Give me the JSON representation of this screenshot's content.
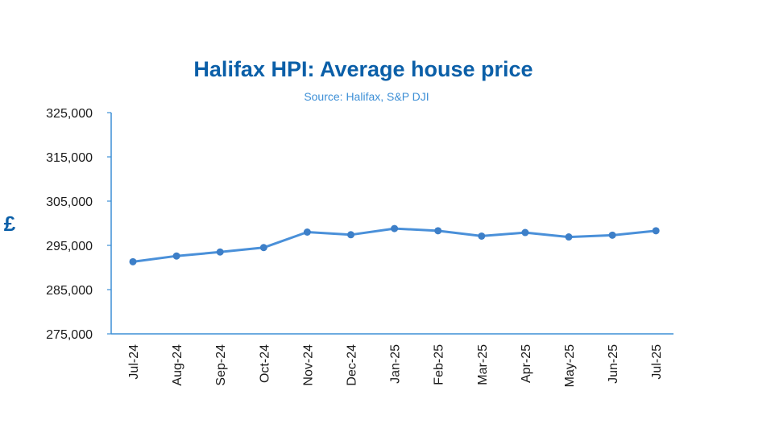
{
  "chart_data": {
    "type": "line",
    "title": "Halifax HPI: Average house price",
    "subtitle": "Source: Halifax, S&P DJI",
    "ylabel": "£",
    "xlabel": "",
    "categories": [
      "Jul-24",
      "Aug-24",
      "Sep-24",
      "Oct-24",
      "Nov-24",
      "Dec-24",
      "Jan-25",
      "Feb-25",
      "Mar-25",
      "Apr-25",
      "May-25",
      "Jun-25",
      "Jul-25"
    ],
    "series": [
      {
        "values": [
          291300,
          292600,
          293500,
          294500,
          298000,
          297400,
          298800,
          298300,
          297100,
          297900,
          296900,
          297300,
          298300
        ]
      }
    ],
    "ylim": [
      275000,
      325000
    ],
    "yticks": [
      275000,
      285000,
      295000,
      305000,
      315000,
      325000
    ],
    "ytick_labels": [
      "275,000",
      "285,000",
      "295,000",
      "305,000",
      "315,000",
      "325,000"
    ],
    "grid": false,
    "legend": "none",
    "line_color": "#4a90d9",
    "marker_color": "#3d7fc8",
    "title_color": "#0b5fa8"
  }
}
